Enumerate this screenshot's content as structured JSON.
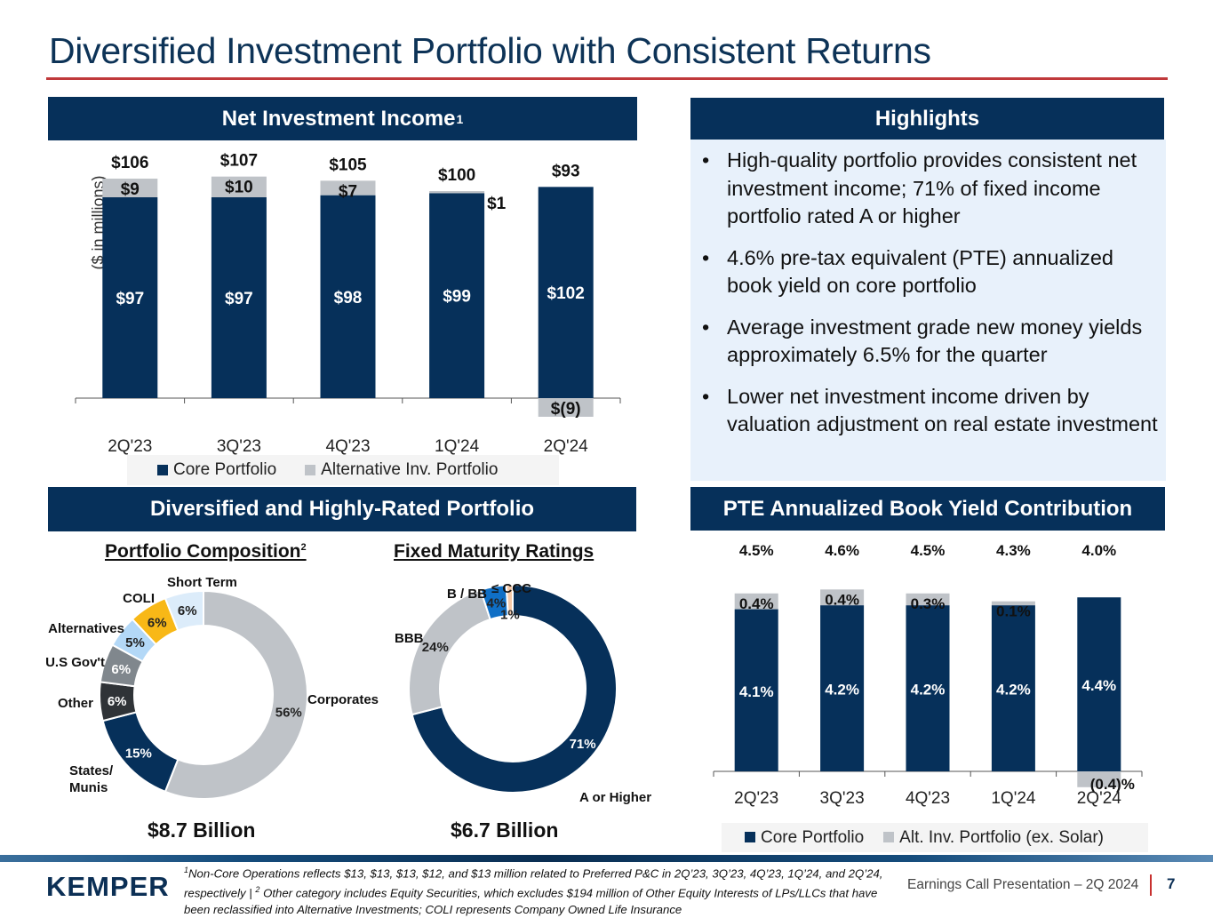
{
  "title": "Diversified Investment Portfolio with Consistent Returns",
  "colors": {
    "navy": "#06305a",
    "title_blue": "#0d3357",
    "accent_red": "#c0393b",
    "alt_gray": "#bfc3c8",
    "highlight_bg": "#e8f1fb"
  },
  "sections": {
    "nii": {
      "title": "Net Investment Income",
      "sup": "1"
    },
    "highlights": {
      "title": "Highlights"
    },
    "diversified": {
      "title": "Diversified and Highly-Rated Portfolio"
    },
    "pte": {
      "title": "PTE Annualized Book Yield Contribution"
    }
  },
  "highlights": [
    "High-quality portfolio provides consistent net investment income; 71% of fixed income portfolio rated A or higher",
    "4.6% pre-tax equivalent (PTE) annualized book yield on core portfolio",
    "Average investment grade new money yields approximately 6.5% for the quarter",
    "Lower net investment income driven by valuation adjustment on real estate investment"
  ],
  "chart_data": [
    {
      "id": "nii",
      "type": "bar",
      "stacked": true,
      "title": "Net Investment Income",
      "ylabel": "($ in millions)",
      "xlabel": "",
      "categories": [
        "2Q'23",
        "3Q'23",
        "4Q'23",
        "1Q'24",
        "2Q'24"
      ],
      "series": [
        {
          "name": "Core Portfolio",
          "color": "#06305a",
          "values": [
            97,
            97,
            98,
            99,
            102
          ],
          "labels": [
            "$97",
            "$97",
            "$98",
            "$99",
            "$102"
          ]
        },
        {
          "name": "Alternative Inv. Portfolio",
          "color": "#bfc3c8",
          "values": [
            9,
            10,
            7,
            1,
            -9
          ],
          "labels": [
            "$9",
            "$10",
            "$7",
            "$1",
            "$(9)"
          ]
        }
      ],
      "totals": [
        106,
        107,
        105,
        100,
        93
      ],
      "total_labels": [
        "$106",
        "$107",
        "$105",
        "$100",
        "$93"
      ],
      "ylim": [
        -9,
        107
      ],
      "grid": false,
      "legend": "bottom"
    },
    {
      "id": "composition",
      "type": "pie",
      "donut": true,
      "title": "Portfolio Composition",
      "title_sup": "2",
      "total_label": "$8.7 Billion",
      "slices": [
        {
          "name": "Corporates",
          "value": 56,
          "label": "56%",
          "color": "#bfc3c8"
        },
        {
          "name": "States/ Munis",
          "value": 15,
          "label": "15%",
          "color": "#06305a"
        },
        {
          "name": "Other",
          "value": 6,
          "label": "6%",
          "color": "#2f3337"
        },
        {
          "name": "U.S Gov't",
          "value": 6,
          "label": "6%",
          "color": "#80878d"
        },
        {
          "name": "Alternatives",
          "value": 5,
          "label": "5%",
          "color": "#b3d8f7"
        },
        {
          "name": "COLI",
          "value": 6,
          "label": "6%",
          "color": "#f8b817"
        },
        {
          "name": "Short Term",
          "value": 6,
          "label": "6%",
          "color": "#dcecfa"
        }
      ]
    },
    {
      "id": "ratings",
      "type": "pie",
      "donut": true,
      "title": "Fixed Maturity Ratings",
      "total_label": "$6.7 Billion",
      "slices": [
        {
          "name": "A or Higher",
          "value": 71,
          "label": "71%",
          "color": "#06305a"
        },
        {
          "name": "BBB",
          "value": 24,
          "label": "24%",
          "color": "#bfc3c8"
        },
        {
          "name": "B / BB",
          "value": 4,
          "label": "4%",
          "color": "#0f6fc6"
        },
        {
          "name": "≤ CCC",
          "value": 1,
          "label": "1%",
          "color": "#f5c9a8"
        }
      ]
    },
    {
      "id": "pte",
      "type": "bar",
      "stacked": true,
      "title": "PTE Annualized Book Yield Contribution",
      "xlabel": "",
      "ylabel": "",
      "categories": [
        "2Q'23",
        "3Q'23",
        "4Q'23",
        "1Q'24",
        "2Q'24"
      ],
      "series": [
        {
          "name": "Core Portfolio",
          "color": "#06305a",
          "values": [
            4.1,
            4.2,
            4.2,
            4.2,
            4.4
          ],
          "labels": [
            "4.1%",
            "4.2%",
            "4.2%",
            "4.2%",
            "4.4%"
          ]
        },
        {
          "name": "Alt. Inv. Portfolio (ex. Solar)",
          "color": "#bfc3c8",
          "values": [
            0.4,
            0.4,
            0.3,
            0.1,
            -0.4
          ],
          "labels": [
            "0.4%",
            "0.4%",
            "0.3%",
            "0.1%",
            "(0.4)%"
          ]
        }
      ],
      "totals": [
        4.5,
        4.6,
        4.5,
        4.3,
        4.0
      ],
      "total_labels": [
        "4.5%",
        "4.6%",
        "4.5%",
        "4.3%",
        "4.0%"
      ],
      "ylim": [
        -0.4,
        4.6
      ],
      "grid": false,
      "legend": "bottom"
    }
  ],
  "footer": {
    "logo": "KEMPER",
    "footnote_1_mark": "1",
    "footnote_1": "Non-Core Operations reflects $13, $13, $13, $12, and $13 million related to Preferred P&C in 2Q’23, 3Q’23, 4Q’23, 1Q’24, and 2Q’24, respectively | ",
    "footnote_2_mark": "2",
    "footnote_2": "Other category includes Equity Securities, which excludes $194 million of Other Equity Interests of LPs/LLCs that have been reclassified into Alternative Investments; COLI represents Company Owned Life Insurance",
    "presentation": "Earnings Call Presentation – 2Q 2024",
    "page": "7"
  }
}
